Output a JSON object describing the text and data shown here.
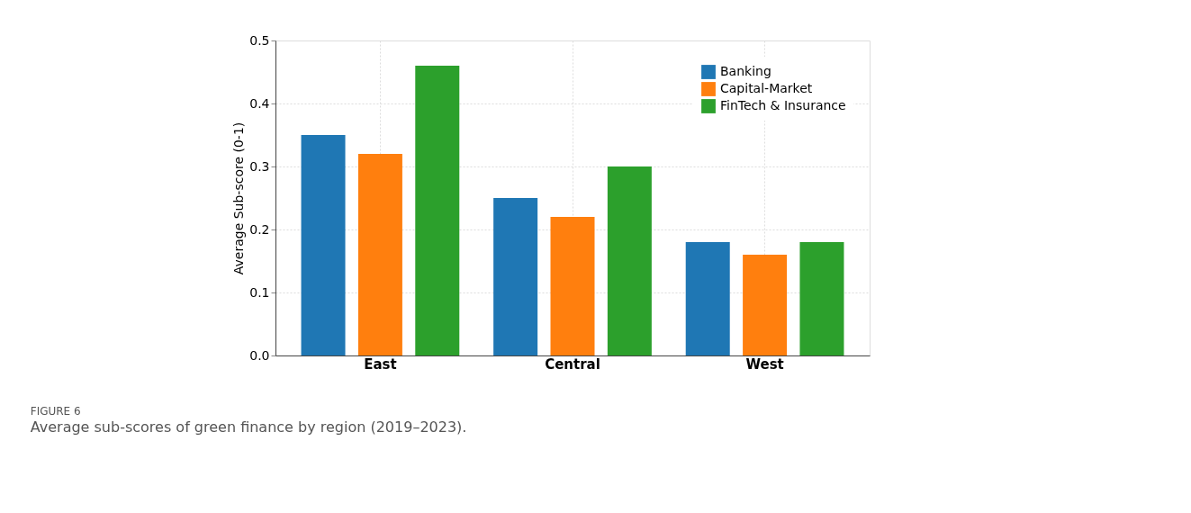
{
  "chart_data": {
    "type": "bar",
    "ylabel": "Average Sub-score (0-1)",
    "categories": [
      "East",
      "Central",
      "West"
    ],
    "series": [
      {
        "name": "Banking",
        "color": "#1f77b4",
        "values": [
          0.35,
          0.25,
          0.18
        ]
      },
      {
        "name": "Capital-Market",
        "color": "#ff7f0e",
        "values": [
          0.32,
          0.22,
          0.16
        ]
      },
      {
        "name": "FinTech & Insurance",
        "color": "#2ca02c",
        "values": [
          0.46,
          0.3,
          0.18
        ]
      }
    ],
    "ylim": [
      0,
      0.5
    ],
    "yticks": [
      {
        "value": 0,
        "label": "0.0"
      },
      0.1,
      0.2,
      0.3,
      0.4,
      0.5
    ],
    "grid": true,
    "legend": "top right",
    "annotations": [
      "FIGURE 6",
      "Average sub-scores of green finance by region (2019–2023)."
    ]
  }
}
